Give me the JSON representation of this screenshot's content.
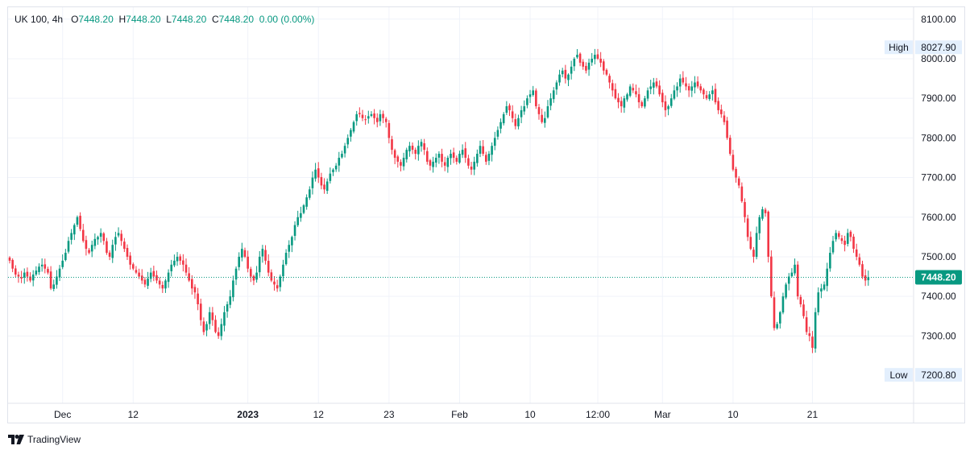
{
  "legend": {
    "symbol": "UK 100, 4h",
    "o_label": "O",
    "o_value": "7448.20",
    "h_label": "H",
    "h_value": "7448.20",
    "l_label": "L",
    "l_value": "7448.20",
    "c_label": "C",
    "c_value": "7448.20",
    "change": "0.00 (0.00%)"
  },
  "brand": {
    "name": "TradingView"
  },
  "colors": {
    "up": "#089981",
    "down": "#f23645",
    "grid": "#f0f3fa",
    "axis_text": "#131722",
    "badge_bg": "#e3effd",
    "last_price_bg": "#089981"
  },
  "chart_data": {
    "type": "candlestick",
    "symbol": "UK 100",
    "interval": "4h",
    "ylim": [
      7130,
      8130
    ],
    "y_ticks": [
      "8100.00",
      "8000.00",
      "7900.00",
      "7800.00",
      "7700.00",
      "7600.00",
      "7500.00",
      "7400.00",
      "7300.00"
    ],
    "x_ticks": [
      {
        "label": "Dec",
        "index": 18
      },
      {
        "label": "12",
        "index": 42
      },
      {
        "label": "2023",
        "index": 81,
        "bold": true
      },
      {
        "label": "12",
        "index": 105
      },
      {
        "label": "23",
        "index": 129
      },
      {
        "label": "Feb",
        "index": 153
      },
      {
        "label": "10",
        "index": 177
      },
      {
        "label": "12:00",
        "index": 200
      },
      {
        "label": "Mar",
        "index": 222
      },
      {
        "label": "10",
        "index": 246
      },
      {
        "label": "21",
        "index": 273
      }
    ],
    "high": {
      "label": "High",
      "value": "8027.90"
    },
    "low": {
      "label": "Low",
      "value": "7200.80"
    },
    "last_price": "7448.20",
    "closes": [
      7490,
      7470,
      7455,
      7450,
      7445,
      7460,
      7450,
      7440,
      7455,
      7465,
      7475,
      7480,
      7470,
      7460,
      7420,
      7430,
      7450,
      7470,
      7490,
      7510,
      7540,
      7560,
      7580,
      7600,
      7570,
      7540,
      7520,
      7510,
      7530,
      7545,
      7550,
      7560,
      7540,
      7510,
      7500,
      7530,
      7550,
      7560,
      7540,
      7520,
      7500,
      7480,
      7470,
      7460,
      7450,
      7440,
      7430,
      7445,
      7460,
      7450,
      7440,
      7430,
      7420,
      7440,
      7460,
      7480,
      7490,
      7500,
      7490,
      7480,
      7460,
      7440,
      7420,
      7410,
      7380,
      7340,
      7310,
      7330,
      7360,
      7340,
      7310,
      7300,
      7330,
      7360,
      7380,
      7400,
      7440,
      7470,
      7500,
      7520,
      7500,
      7470,
      7450,
      7440,
      7460,
      7500,
      7520,
      7490,
      7460,
      7440,
      7430,
      7420,
      7450,
      7480,
      7510,
      7530,
      7550,
      7580,
      7600,
      7610,
      7630,
      7650,
      7670,
      7700,
      7720,
      7700,
      7680,
      7670,
      7690,
      7710,
      7720,
      7730,
      7750,
      7760,
      7780,
      7800,
      7820,
      7840,
      7860,
      7860,
      7850,
      7845,
      7855,
      7860,
      7850,
      7840,
      7860,
      7850,
      7840,
      7800,
      7770,
      7750,
      7740,
      7730,
      7750,
      7770,
      7780,
      7770,
      7760,
      7780,
      7790,
      7770,
      7740,
      7730,
      7740,
      7750,
      7760,
      7740,
      7730,
      7750,
      7760,
      7750,
      7740,
      7760,
      7770,
      7750,
      7730,
      7720,
      7740,
      7760,
      7780,
      7760,
      7740,
      7760,
      7780,
      7800,
      7820,
      7840,
      7860,
      7880,
      7870,
      7850,
      7830,
      7850,
      7870,
      7880,
      7900,
      7910,
      7920,
      7880,
      7860,
      7840,
      7850,
      7880,
      7900,
      7920,
      7940,
      7960,
      7970,
      7950,
      7960,
      7980,
      8000,
      8010,
      7990,
      7980,
      7970,
      7990,
      8000,
      8010,
      8000,
      7990,
      7970,
      7960,
      7940,
      7920,
      7900,
      7890,
      7880,
      7900,
      7910,
      7930,
      7920,
      7910,
      7890,
      7880,
      7900,
      7920,
      7930,
      7940,
      7930,
      7910,
      7890,
      7870,
      7880,
      7900,
      7920,
      7930,
      7950,
      7940,
      7930,
      7920,
      7930,
      7940,
      7930,
      7920,
      7910,
      7900,
      7910,
      7920,
      7890,
      7870,
      7860,
      7840,
      7800,
      7760,
      7720,
      7700,
      7680,
      7640,
      7600,
      7550,
      7520,
      7500,
      7560,
      7600,
      7620,
      7610,
      7500,
      7400,
      7320,
      7330,
      7360,
      7400,
      7430,
      7450,
      7460,
      7480,
      7400,
      7380,
      7350,
      7310,
      7300,
      7270,
      7360,
      7410,
      7420,
      7430,
      7470,
      7510,
      7540,
      7560,
      7550,
      7540,
      7530,
      7560,
      7550,
      7520,
      7500,
      7480,
      7450,
      7440,
      7448.2
    ]
  }
}
